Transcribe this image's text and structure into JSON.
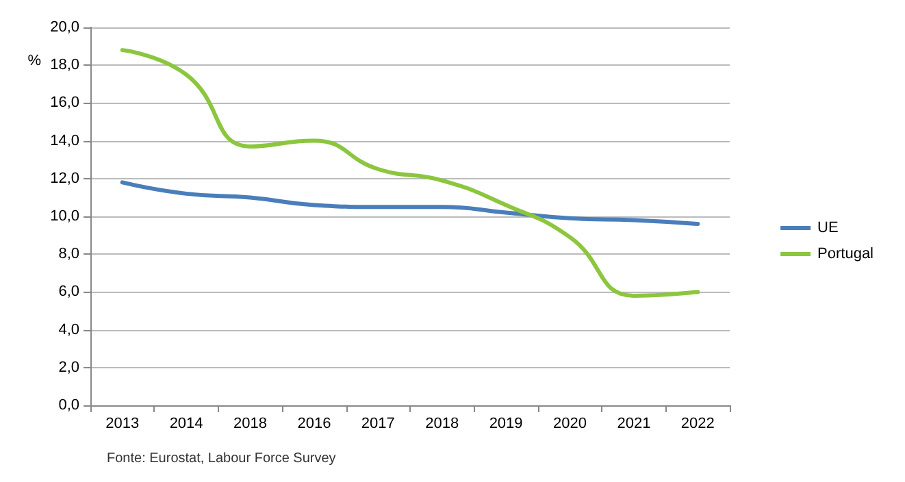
{
  "chart_data": {
    "type": "line",
    "ylabel": "%",
    "categories": [
      "2013",
      "2014",
      "2018",
      "2016",
      "2017",
      "2018",
      "2019",
      "2020",
      "2021",
      "2022"
    ],
    "series": [
      {
        "name": "UE",
        "color": "#4a7ebb",
        "values": [
          11.8,
          11.2,
          11.0,
          10.6,
          10.5,
          10.5,
          10.2,
          9.9,
          9.8,
          9.6
        ]
      },
      {
        "name": "Portugal",
        "color": "#8cc63f",
        "values": [
          18.8,
          17.5,
          13.7,
          14.0,
          12.5,
          11.9,
          10.6,
          8.9,
          5.8,
          6.0
        ]
      }
    ],
    "ylim": [
      0,
      20
    ],
    "yticks": [
      {
        "value": 0,
        "label": "0,0"
      },
      {
        "value": 2,
        "label": "2,0"
      },
      {
        "value": 4,
        "label": "4,0"
      },
      {
        "value": 6,
        "label": "6,0"
      },
      {
        "value": 8,
        "label": "8,0"
      },
      {
        "value": 10,
        "label": "10,0"
      },
      {
        "value": 12,
        "label": "12,0"
      },
      {
        "value": 14,
        "label": "14,0"
      },
      {
        "value": 16,
        "label": "16,0"
      },
      {
        "value": 18,
        "label": "18,0"
      },
      {
        "value": 20,
        "label": "20,0"
      }
    ],
    "grid": "y",
    "legend": "right",
    "marker": "none",
    "line_style": "solid",
    "annotations": [
      "Fonte: Eurostat, Labour Force Survey"
    ]
  }
}
